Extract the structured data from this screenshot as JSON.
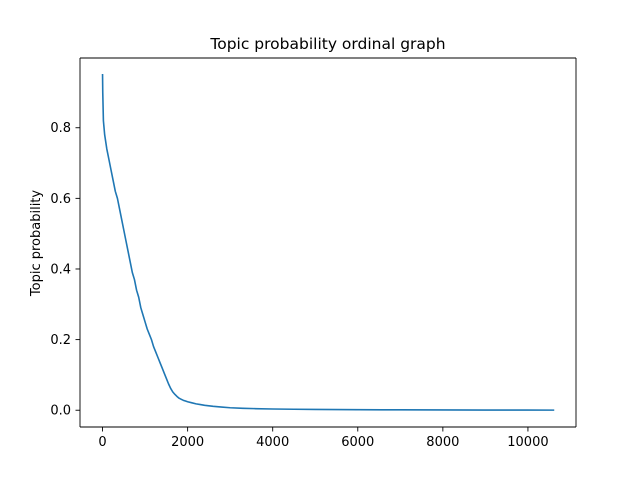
{
  "chart_data": {
    "type": "line",
    "title": "Topic probability ordinal graph",
    "xlabel": "",
    "ylabel": "Topic probability",
    "xlim": [
      -530,
      11130
    ],
    "ylim": [
      -0.0475,
      0.9975
    ],
    "xticks": [
      0,
      2000,
      4000,
      6000,
      8000,
      10000
    ],
    "yticks": [
      0.0,
      0.2,
      0.4,
      0.6,
      0.8
    ],
    "xtick_labels": [
      "0",
      "2000",
      "4000",
      "6000",
      "8000",
      "10000"
    ],
    "ytick_labels": [
      "0.0",
      "0.2",
      "0.4",
      "0.6",
      "0.8"
    ],
    "grid": false,
    "legend": "none",
    "series": [
      {
        "color": "#1f77b4",
        "x": [
          0,
          5,
          20,
          50,
          100,
          150,
          200,
          250,
          300,
          350,
          400,
          450,
          500,
          550,
          600,
          650,
          700,
          750,
          800,
          850,
          900,
          950,
          1000,
          1050,
          1100,
          1150,
          1200,
          1250,
          1300,
          1350,
          1400,
          1450,
          1500,
          1550,
          1600,
          1650,
          1700,
          1750,
          1800,
          1850,
          1900,
          1950,
          2000,
          2100,
          2200,
          2300,
          2400,
          2600,
          2800,
          3000,
          3300,
          3600,
          4000,
          4500,
          5000,
          6000,
          7000,
          8000,
          9000,
          10000,
          10600
        ],
        "y": [
          0.95,
          0.9,
          0.82,
          0.78,
          0.74,
          0.71,
          0.68,
          0.65,
          0.62,
          0.6,
          0.57,
          0.54,
          0.51,
          0.48,
          0.45,
          0.42,
          0.39,
          0.37,
          0.34,
          0.32,
          0.29,
          0.27,
          0.25,
          0.23,
          0.215,
          0.2,
          0.18,
          0.165,
          0.15,
          0.135,
          0.12,
          0.105,
          0.09,
          0.075,
          0.062,
          0.052,
          0.045,
          0.039,
          0.034,
          0.031,
          0.028,
          0.026,
          0.024,
          0.021,
          0.018,
          0.016,
          0.014,
          0.011,
          0.009,
          0.007,
          0.0055,
          0.0045,
          0.0035,
          0.0028,
          0.0022,
          0.0015,
          0.0011,
          0.0008,
          0.0006,
          0.0004,
          0.0003
        ]
      }
    ]
  }
}
